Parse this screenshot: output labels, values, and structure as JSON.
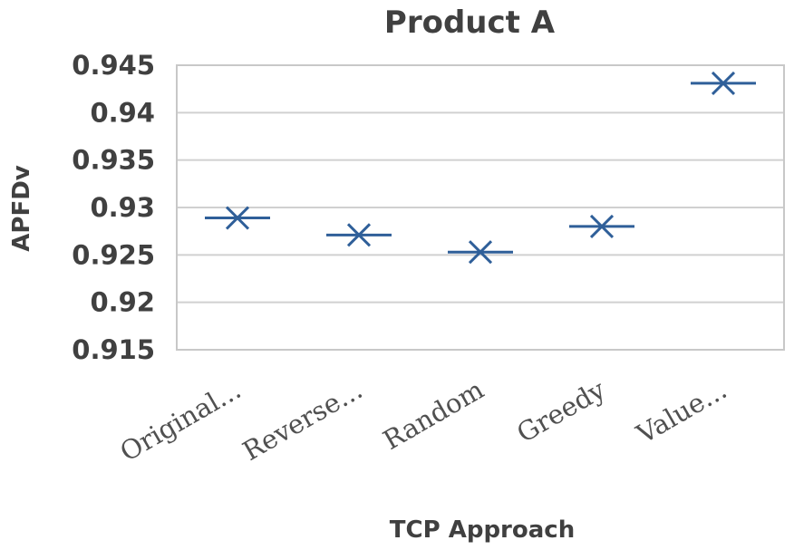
{
  "chart_data": {
    "type": "scatter",
    "title": "Product A",
    "xlabel": "TCP Approach",
    "ylabel": "APFDv",
    "categories": [
      "Original...",
      "Reverse...",
      "Random",
      "Greedy",
      "Value..."
    ],
    "values": [
      0.9289,
      0.9271,
      0.9253,
      0.928,
      0.9431
    ],
    "ylim": [
      0.915,
      0.945
    ],
    "yticks": [
      "0.945",
      "0.94",
      "0.935",
      "0.93",
      "0.925",
      "0.92",
      "0.915"
    ],
    "ytick_values": [
      0.945,
      0.94,
      0.935,
      0.93,
      0.925,
      0.92,
      0.915
    ],
    "grid": true,
    "legend": "none",
    "marker": "star",
    "colors": {
      "marker": "#2f5f99",
      "grid": "#d0d0d0",
      "text": "#404040"
    }
  }
}
